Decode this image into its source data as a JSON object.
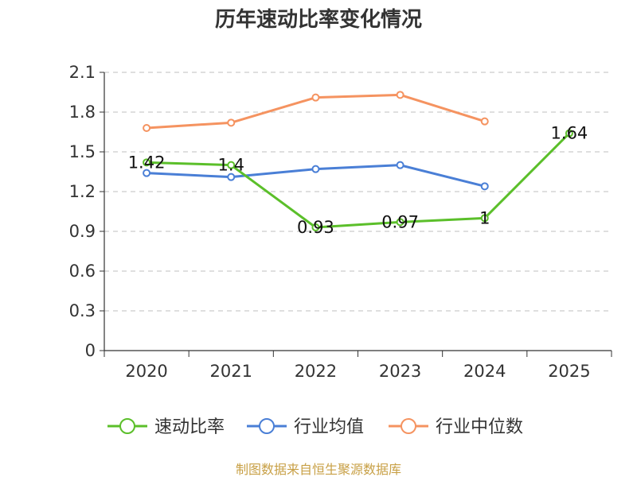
{
  "chart_data": {
    "type": "line",
    "title": "历年速动比率变化情况",
    "categories": [
      "2020",
      "2021",
      "2022",
      "2023",
      "2024",
      "2025"
    ],
    "y_ticks": [
      "0",
      "0.3",
      "0.6",
      "0.9",
      "1.2",
      "1.5",
      "1.8",
      "2.1"
    ],
    "ylim": [
      0,
      2.1
    ],
    "grid": "horizontal-dashed",
    "legend_position": "bottom",
    "series": [
      {
        "name": "速动比率",
        "color": "#5bbf2a",
        "values": [
          1.42,
          1.4,
          0.93,
          0.97,
          1.0,
          1.64
        ],
        "data_labels": [
          "1.42",
          "1.4",
          "0.93",
          "0.97",
          "1",
          "1.64"
        ]
      },
      {
        "name": "行业均值",
        "color": "#4a7fd6",
        "values": [
          1.34,
          1.31,
          1.37,
          1.4,
          1.24,
          null
        ]
      },
      {
        "name": "行业中位数",
        "color": "#f59360",
        "values": [
          1.68,
          1.72,
          1.91,
          1.93,
          1.73,
          null
        ]
      }
    ]
  },
  "footer": {
    "source": "制图数据来自恒生聚源数据库"
  }
}
